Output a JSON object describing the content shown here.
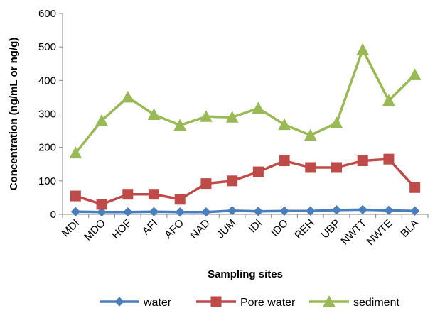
{
  "chart_data": {
    "type": "line",
    "title": "",
    "xlabel": "Sampling sites",
    "ylabel": "Concentration (ng/mL or ng/g)",
    "ylim": [
      0,
      600
    ],
    "yticks": [
      0,
      100,
      200,
      300,
      400,
      500,
      600
    ],
    "grid": false,
    "legend_position": "bottom",
    "categories": [
      "MDI",
      "MDO",
      "HOF",
      "AFI",
      "AFO",
      "NAD",
      "JUM",
      "IDI",
      "IDO",
      "REH",
      "UBP",
      "NWTT",
      "NWTE",
      "BLA"
    ],
    "series": [
      {
        "name": "water",
        "color": "#4a7ebb",
        "marker": "diamond",
        "values": [
          8,
          7,
          7,
          8,
          7,
          7,
          11,
          9,
          10,
          10,
          13,
          14,
          12,
          10
        ]
      },
      {
        "name": "Pore water",
        "color": "#be4b48",
        "marker": "square",
        "values": [
          55,
          30,
          60,
          60,
          45,
          92,
          100,
          127,
          160,
          140,
          140,
          160,
          165,
          80
        ]
      },
      {
        "name": "sediment",
        "color": "#98b954",
        "marker": "triangle",
        "values": [
          183,
          280,
          350,
          298,
          266,
          292,
          290,
          317,
          268,
          236,
          273,
          492,
          340,
          417
        ]
      }
    ]
  }
}
